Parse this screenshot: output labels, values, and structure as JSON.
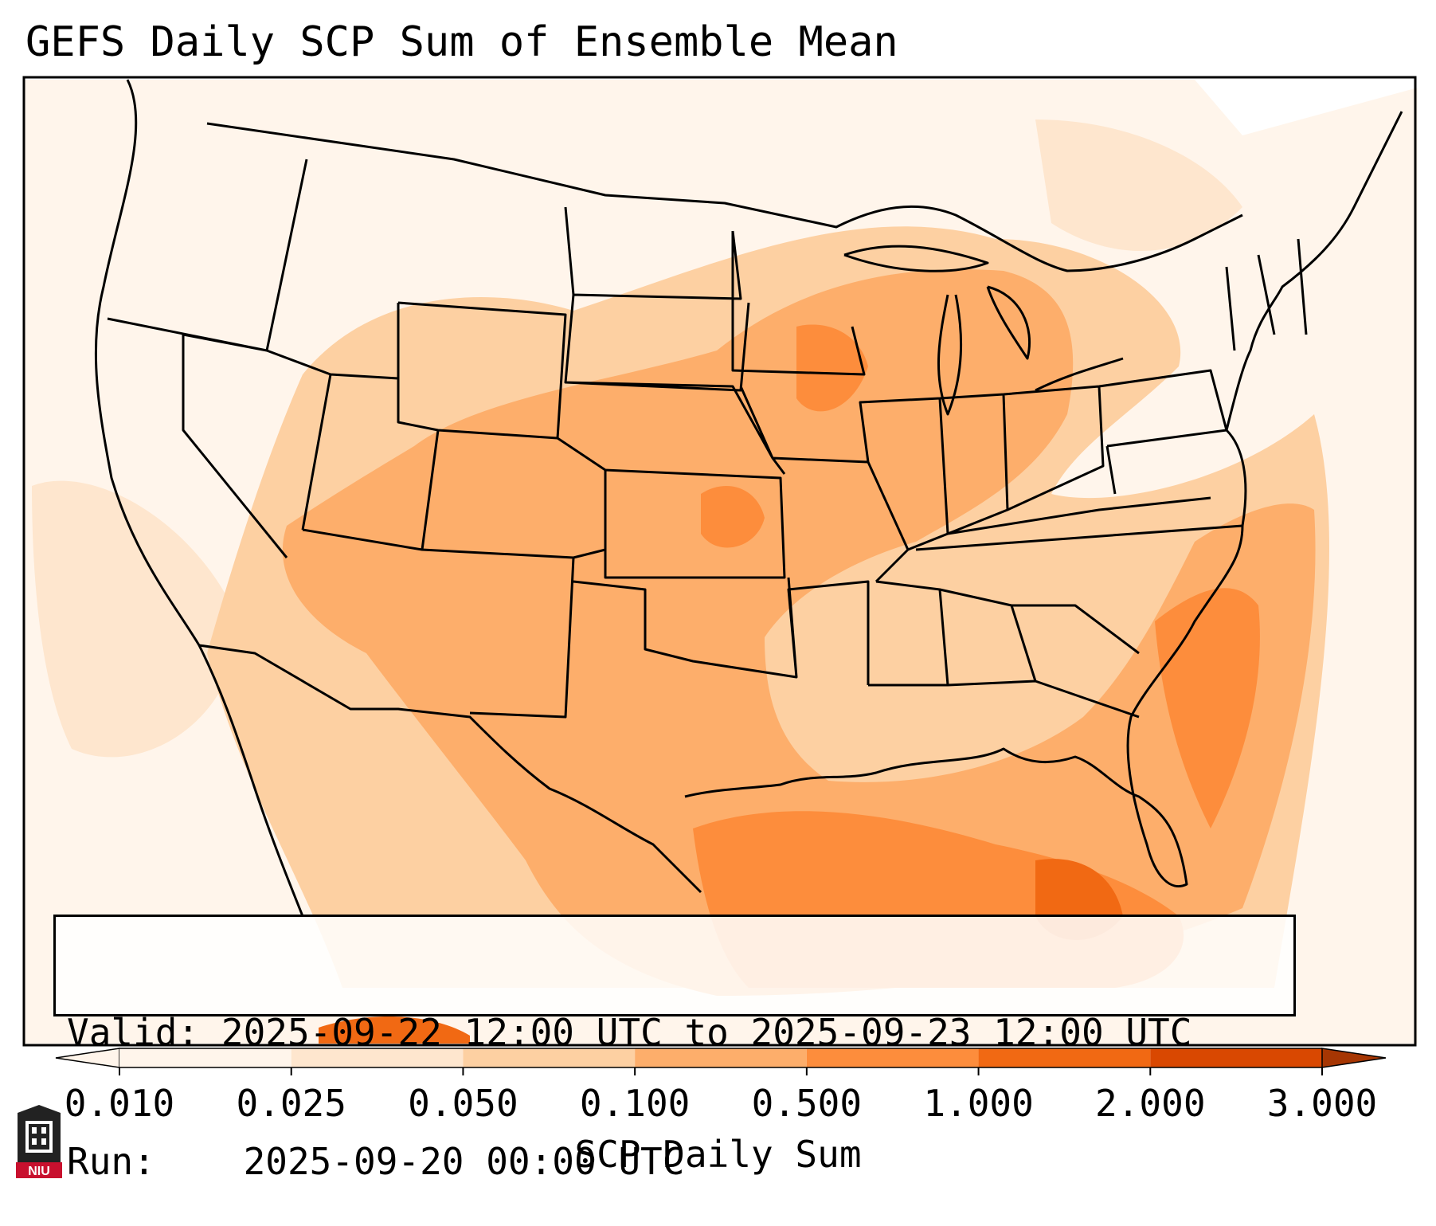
{
  "title": "GEFS Daily SCP Sum of Ensemble Mean",
  "info": {
    "valid_label": "Valid:",
    "valid_value": "2025-09-22 12:00 UTC to 2025-09-23 12:00 UTC",
    "run_label": "Run:",
    "run_value": "2025-09-20 00:00 UTC"
  },
  "colorbar": {
    "label": "SCP Daily Sum",
    "ticks": [
      "0.010",
      "0.025",
      "0.050",
      "0.100",
      "0.500",
      "1.000",
      "2.000",
      "3.000"
    ],
    "colors": [
      "#fff5eb",
      "#fee6ce",
      "#fdd0a2",
      "#fdae6b",
      "#fd8d3c",
      "#f16913",
      "#d94801",
      "#a63603"
    ]
  },
  "logo": {
    "text": "NIU"
  },
  "palette": {
    "state_lines": "#000000",
    "frame": "#000000"
  }
}
